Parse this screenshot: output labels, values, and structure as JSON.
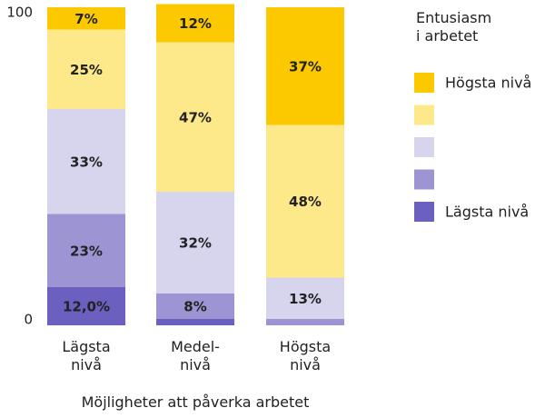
{
  "chart_data": {
    "type": "stacked_bar",
    "categories": [
      "Lägsta\nnivå",
      "Medel-\nnivå",
      "Högsta\nnivå"
    ],
    "x_label": "Möjligheter att påverka arbetet",
    "legend_title": "Entusiasm\ni arbetet",
    "ylim": [
      0,
      100
    ],
    "yticks": [
      0,
      100
    ],
    "series": [
      {
        "name": "Lägsta nivå",
        "color": "#6b5fbf",
        "values": [
          12.0,
          2,
          0
        ],
        "value_labels": [
          "12,0%",
          null,
          null
        ]
      },
      {
        "name": null,
        "color": "#9d95d3",
        "values": [
          23,
          8,
          2
        ],
        "value_labels": [
          "23%",
          "8%",
          null
        ]
      },
      {
        "name": null,
        "color": "#d7d4ee",
        "values": [
          33,
          32,
          13
        ],
        "value_labels": [
          "33%",
          "32%",
          "13%"
        ]
      },
      {
        "name": null,
        "color": "#fee98a",
        "values": [
          25,
          47,
          48
        ],
        "value_labels": [
          "25%",
          "47%",
          "48%"
        ]
      },
      {
        "name": "Högsta nivå",
        "color": "#fcc900",
        "values": [
          7,
          12,
          37
        ],
        "value_labels": [
          "7%",
          "12%",
          "37%"
        ]
      }
    ]
  }
}
